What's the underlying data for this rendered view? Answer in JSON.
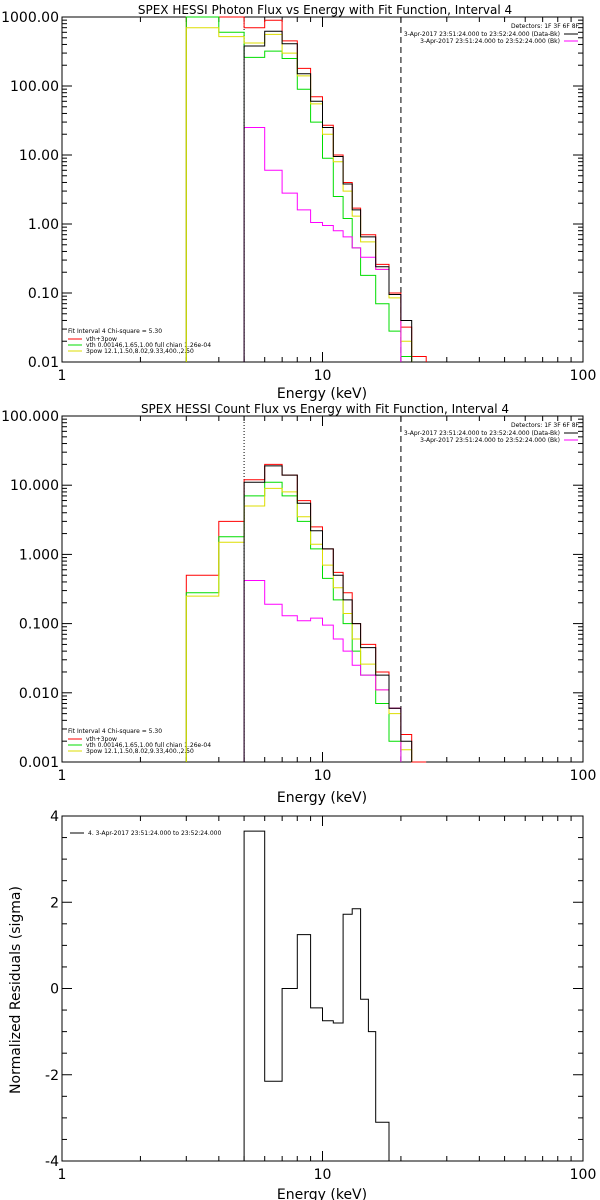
{
  "chart_data": [
    {
      "type": "line",
      "title": "SPEX HESSI Photon Flux vs Energy with Fit Function, Interval 4",
      "xlabel": "Energy (keV)",
      "ylabel": "",
      "xscale": "log",
      "yscale": "log",
      "xlim": [
        1,
        100
      ],
      "ylim": [
        0.01,
        1000
      ],
      "x_tick_labels": [
        "1",
        "10",
        "100"
      ],
      "y_tick_labels": [
        "0.01",
        "0.10",
        "1.00",
        "10.00",
        "100.00",
        "1000.00"
      ],
      "legend_top": [
        "Detectors: 1F 3F 6F 8F",
        "3-Apr-2017 23:51:24.000 to 23:52:24.000 (Data-Bk)",
        "3-Apr-2017 23:51:24.000 to 23:52:24.000 (Bk)"
      ],
      "legend_bottom": [
        "Fit Interval 4   Chi-square = 5.30",
        "vth+3pow",
        "vth 0.00146,1.65,1.00  full chian 1.26e-04",
        "3pow 12.1,1.50,8.02,9.33,400.,2.50"
      ],
      "vlines": [
        5,
        20
      ],
      "edges": [
        3,
        4,
        5,
        6,
        7,
        8,
        9,
        10,
        11,
        12,
        13,
        14,
        16,
        18,
        20,
        22,
        25
      ],
      "series": [
        {
          "name": "Data-Bk",
          "color": "#000000",
          "values": [
            null,
            null,
            380,
            620,
            410,
            150,
            60,
            25,
            9.5,
            3.8,
            1.6,
            0.65,
            0.24,
            0.095,
            0.04,
            null
          ]
        },
        {
          "name": "vth+3pow",
          "color": "#ff0000",
          "values": [
            1000,
            1000,
            700,
            900,
            450,
            180,
            70,
            27,
            10,
            4,
            1.7,
            0.7,
            0.26,
            0.1,
            0.032,
            0.012
          ]
        },
        {
          "name": "vth",
          "color": "#00dd00",
          "values": [
            1000,
            600,
            260,
            320,
            250,
            90,
            30,
            9,
            2.5,
            1.2,
            0.45,
            0.18,
            0.07,
            0.028,
            0.012,
            null
          ]
        },
        {
          "name": "3pow",
          "color": "#dddd00",
          "values": [
            700,
            520,
            420,
            560,
            300,
            140,
            55,
            20,
            8,
            3,
            1.3,
            0.55,
            0.22,
            0.085,
            0.02,
            null
          ]
        },
        {
          "name": "Bk",
          "color": "#ff00ff",
          "values": [
            null,
            null,
            25,
            6,
            2.8,
            1.6,
            1.05,
            0.95,
            0.8,
            0.65,
            0.45,
            0.33,
            0.22,
            0.095,
            null,
            null
          ]
        }
      ]
    },
    {
      "type": "line",
      "title": "SPEX HESSI Count Flux vs Energy with Fit Function, Interval 4",
      "xlabel": "Energy (keV)",
      "ylabel": "",
      "xscale": "log",
      "yscale": "log",
      "xlim": [
        1,
        100
      ],
      "ylim": [
        0.001,
        100
      ],
      "x_tick_labels": [
        "1",
        "10",
        "100"
      ],
      "y_tick_labels": [
        "0.001",
        "0.010",
        "0.100",
        "1.000",
        "10.000",
        "100.000"
      ],
      "legend_top": [
        "Detectors: 1F 3F 6F 8F",
        "3-Apr-2017 23:51:24.000 to 23:52:24.000 (Data-Bk)",
        "3-Apr-2017 23:51:24.000 to 23:52:24.000 (Bk)"
      ],
      "legend_bottom": [
        "Fit Interval 4   Chi-square = 5.30",
        "vth+3pow",
        "vth 0.00146,1.65,1.00  full chian 1.26e-04",
        "3pow 12.1,1.50,8.02,9.33,400.,2.50"
      ],
      "vlines": [
        5,
        20
      ],
      "edges": [
        3,
        4,
        5,
        6,
        7,
        8,
        9,
        10,
        11,
        12,
        13,
        14,
        16,
        18,
        20,
        22,
        25
      ],
      "series": [
        {
          "name": "Data-Bk",
          "color": "#000000",
          "values": [
            null,
            null,
            11,
            19,
            14,
            5.5,
            2.2,
            1.2,
            0.5,
            0.22,
            0.1,
            0.045,
            0.018,
            0.006,
            0.002,
            null
          ]
        },
        {
          "name": "vth+3pow",
          "color": "#ff0000",
          "values": [
            0.5,
            3,
            12,
            20,
            14,
            6,
            2.5,
            1.2,
            0.55,
            0.28,
            0.1,
            0.05,
            0.02,
            0.006,
            0.0025,
            0.001
          ]
        },
        {
          "name": "vth",
          "color": "#00dd00",
          "values": [
            0.28,
            1.8,
            7,
            11,
            7,
            3,
            1.2,
            0.45,
            0.22,
            0.1,
            0.04,
            0.018,
            0.007,
            0.002,
            null,
            null
          ]
        },
        {
          "name": "3pow",
          "color": "#dddd00",
          "values": [
            0.25,
            1.5,
            5,
            9,
            8,
            3.5,
            1.4,
            0.7,
            0.33,
            0.14,
            0.06,
            0.026,
            0.011,
            0.005,
            0.0015,
            null
          ]
        },
        {
          "name": "Bk",
          "color": "#ff00ff",
          "values": [
            null,
            null,
            0.42,
            0.19,
            0.13,
            0.11,
            0.12,
            0.095,
            0.06,
            0.04,
            0.025,
            0.018,
            0.011,
            0.006,
            null,
            null
          ]
        }
      ]
    },
    {
      "type": "line",
      "title": "",
      "xlabel": "Energy (keV)",
      "ylabel": "Normalized Residuals (sigma)",
      "xscale": "log",
      "xlim": [
        1,
        100
      ],
      "ylim": [
        -4,
        4
      ],
      "x_tick_labels": [
        "1",
        "10",
        "100"
      ],
      "y_tick_labels": [
        "-4",
        "-2",
        "0",
        "2",
        "4"
      ],
      "legend": "4.  3-Apr-2017 23:51:24.000 to 23:52:24.000",
      "edges": [
        5,
        6,
        7,
        8,
        9,
        10,
        11,
        12,
        13,
        14,
        15,
        16,
        18,
        20
      ],
      "series": [
        {
          "name": "",
          "color": "#000000",
          "values": [
            3.65,
            -2.15,
            0.0,
            1.25,
            -0.45,
            -0.75,
            -0.8,
            1.72,
            1.85,
            -0.25,
            -1.0,
            -3.1,
            -4.0
          ]
        }
      ]
    }
  ]
}
